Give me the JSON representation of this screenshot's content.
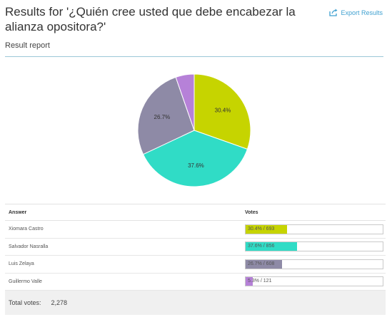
{
  "header": {
    "title": "Results for '¿Quién cree usted que debe encabezar la alianza opositora?'",
    "export_label": "Export Results"
  },
  "report": {
    "subtitle": "Result report"
  },
  "chart_data": {
    "type": "pie",
    "title": "",
    "categories": [
      "Xiomara Castro",
      "Salvador Nasralla",
      "Luis Zelaya",
      "Guillermo Valle"
    ],
    "values": [
      693,
      856,
      608,
      121
    ],
    "percent_labels": [
      "30.4%",
      "37.6%",
      "26.7%",
      ""
    ],
    "colors": [
      "#c6d400",
      "#30dcc6",
      "#8e8aa6",
      "#b681d8"
    ]
  },
  "table": {
    "header_answer": "Answer",
    "header_votes": "Votes",
    "rows": [
      {
        "answer": "Xiomara Castro",
        "bar_text": "30.4% / 693",
        "share": 0.304,
        "color": "#c6d400"
      },
      {
        "answer": "Salvador Nasralla",
        "bar_text": "37.6% / 856",
        "share": 0.376,
        "color": "#30dcc6"
      },
      {
        "answer": "Luis Zelaya",
        "bar_text": "26.7% / 608",
        "share": 0.267,
        "color": "#8e8aa6"
      },
      {
        "answer": "Guillermo Valle",
        "bar_text": "5.3% / 121",
        "share": 0.053,
        "color": "#b681d8"
      }
    ],
    "total_label": "Total votes:",
    "total_value": "2,278"
  }
}
